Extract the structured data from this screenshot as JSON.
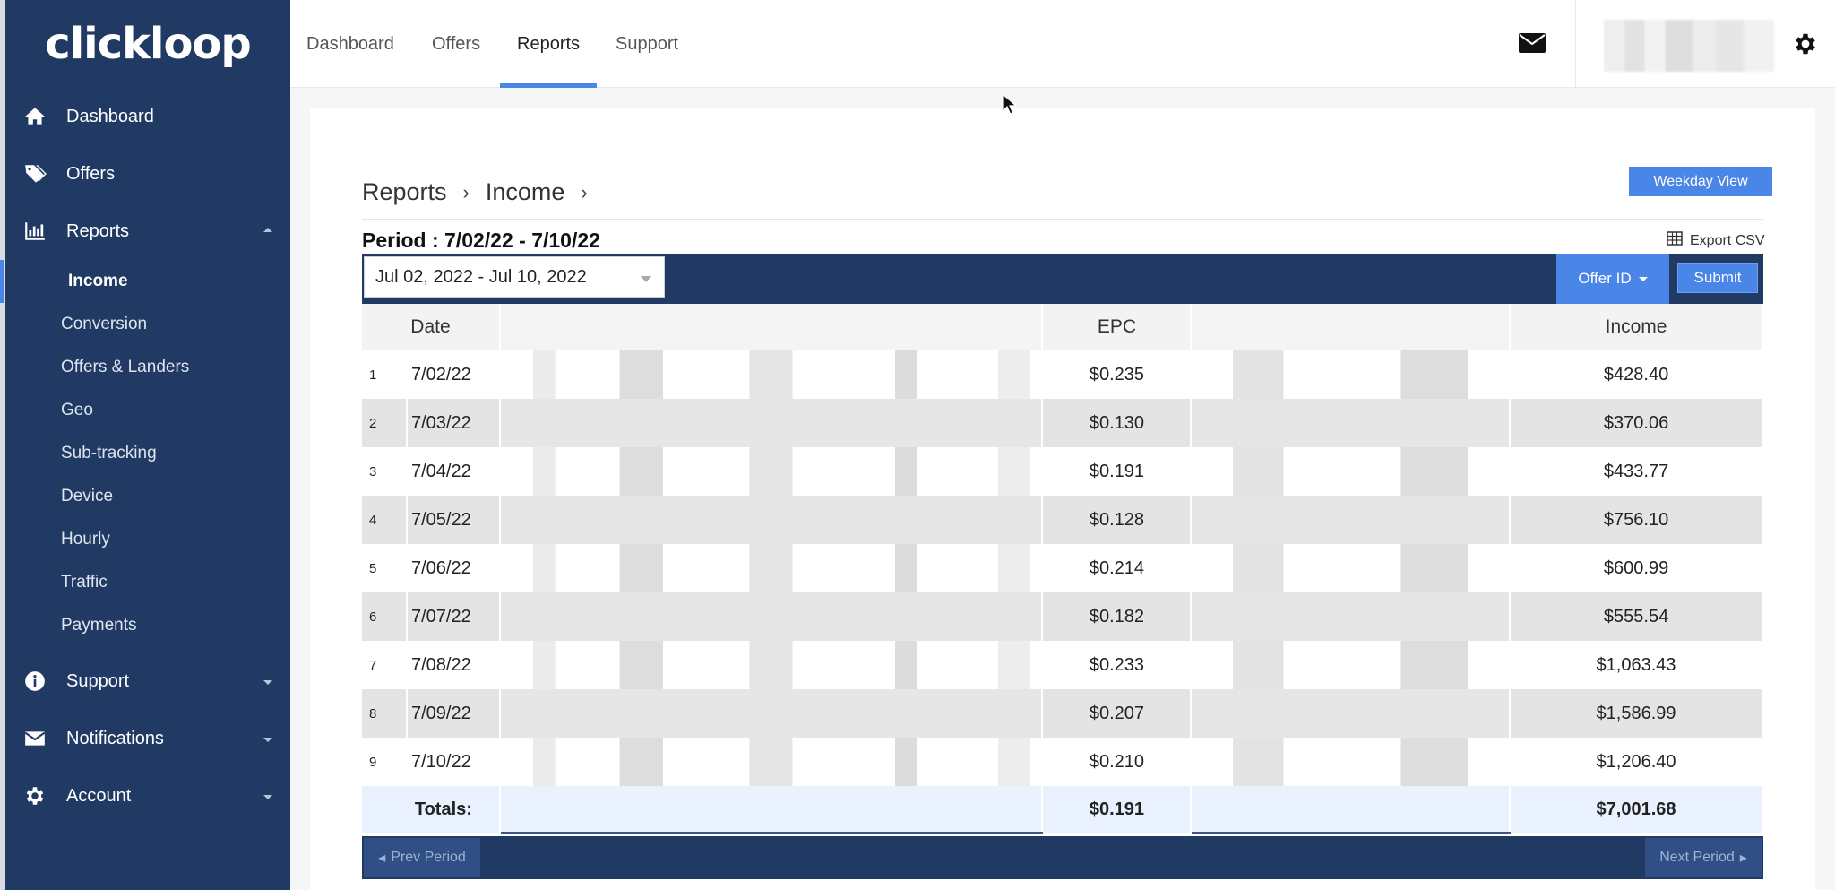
{
  "brand": {
    "logo_text": "clickloop"
  },
  "sidebar": {
    "items": [
      {
        "label": "Dashboard",
        "icon": "home-icon"
      },
      {
        "label": "Offers",
        "icon": "tags-icon"
      },
      {
        "label": "Reports",
        "icon": "bar-chart-icon",
        "expanded": true,
        "sub_items": [
          "Income",
          "Conversion",
          "Offers & Landers",
          "Geo",
          "Sub-tracking",
          "Device",
          "Hourly",
          "Traffic",
          "Payments"
        ],
        "active_sub": "Income"
      },
      {
        "label": "Support",
        "icon": "info-icon"
      },
      {
        "label": "Notifications",
        "icon": "envelope-icon"
      },
      {
        "label": "Account",
        "icon": "gear-icon"
      }
    ]
  },
  "topnav": {
    "tabs": [
      "Dashboard",
      "Offers",
      "Reports",
      "Support"
    ],
    "active": "Reports"
  },
  "breadcrumb": [
    "Reports",
    "Income"
  ],
  "weekday_button": "Weekday View",
  "period_label": "Period : 7/02/22 - 7/10/22",
  "export_label": "Export CSV",
  "toolbar": {
    "date_range": "Jul 02, 2022 - Jul 10, 2022",
    "offer_id_label": "Offer ID",
    "submit_label": "Submit"
  },
  "table": {
    "headers": {
      "date": "Date",
      "epc": "EPC",
      "income": "Income"
    },
    "rows": [
      {
        "num": "1",
        "date": "7/02/22",
        "epc": "$0.235",
        "income": "$428.40"
      },
      {
        "num": "2",
        "date": "7/03/22",
        "epc": "$0.130",
        "income": "$370.06"
      },
      {
        "num": "3",
        "date": "7/04/22",
        "epc": "$0.191",
        "income": "$433.77"
      },
      {
        "num": "4",
        "date": "7/05/22",
        "epc": "$0.128",
        "income": "$756.10"
      },
      {
        "num": "5",
        "date": "7/06/22",
        "epc": "$0.214",
        "income": "$600.99"
      },
      {
        "num": "6",
        "date": "7/07/22",
        "epc": "$0.182",
        "income": "$555.54"
      },
      {
        "num": "7",
        "date": "7/08/22",
        "epc": "$0.233",
        "income": "$1,063.43"
      },
      {
        "num": "8",
        "date": "7/09/22",
        "epc": "$0.207",
        "income": "$1,586.99"
      },
      {
        "num": "9",
        "date": "7/10/22",
        "epc": "$0.210",
        "income": "$1,206.40"
      }
    ],
    "totals": {
      "label": "Totals:",
      "epc": "$0.191",
      "income": "$7,001.68"
    }
  },
  "pagination": {
    "prev_label": "Prev Period",
    "next_label": "Next Period"
  },
  "colors": {
    "sidebar_bg": "#213a64",
    "accent": "#4a86e8"
  }
}
